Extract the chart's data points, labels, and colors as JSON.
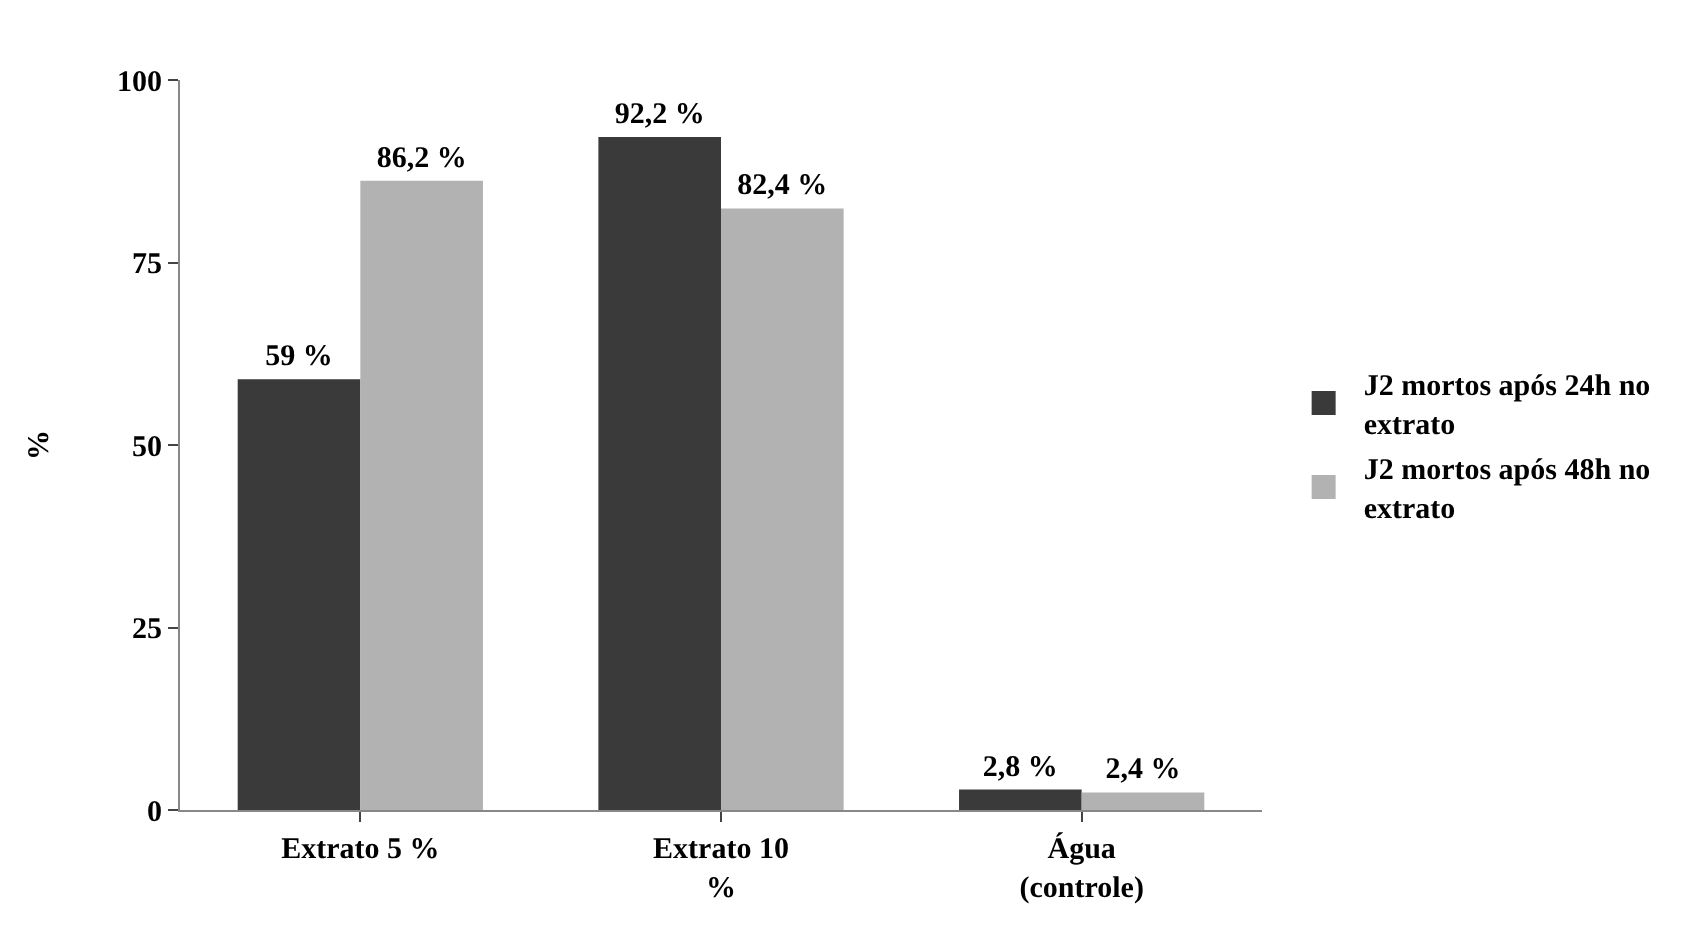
{
  "chart_data": {
    "type": "bar",
    "ylabel": "%",
    "categories": [
      "Extrato 5 %",
      "Extrato 10 %",
      "Água (controle)"
    ],
    "series": [
      {
        "name": "J2 mortos após 24h no extrato",
        "color": "#3a3a3a",
        "values": [
          59,
          92.2,
          2.8
        ],
        "value_labels": [
          "59 %",
          "92,2 %",
          "2,8 %"
        ]
      },
      {
        "name": "J2 mortos após 48h no extrato",
        "color": "#b2b2b2",
        "values": [
          86.2,
          82.4,
          2.4
        ],
        "value_labels": [
          "86,2 %",
          "82,4 %",
          "2,4 %"
        ]
      }
    ],
    "ylim": [
      0,
      100
    ],
    "yticks": [
      0,
      25,
      50,
      75,
      100
    ],
    "grid": false,
    "legend": "right"
  }
}
